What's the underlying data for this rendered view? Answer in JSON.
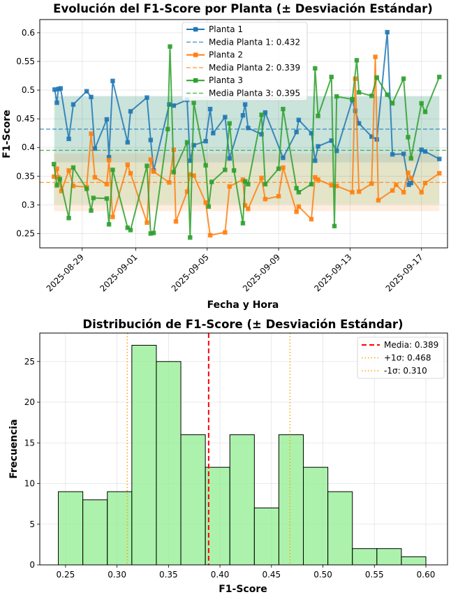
{
  "chart_data": [
    {
      "type": "line",
      "title": "Evolución del F1-Score por Planta (± Desviación Estándar)",
      "xlabel": "Fecha y Hora",
      "ylabel": "F1-Score",
      "x_range": [
        "2025-08-26T15:00",
        "2025-09-18T11:00"
      ],
      "ylim": [
        0.225,
        0.623
      ],
      "x_ticks": [
        "2025-08-29",
        "2025-09-01",
        "2025-09-05",
        "2025-09-09",
        "2025-09-13",
        "2025-09-17"
      ],
      "y_ticks": [
        0.25,
        0.3,
        0.35,
        0.4,
        0.45,
        0.5,
        0.55,
        0.6
      ],
      "grid": true,
      "legend_position": "top-center",
      "series": [
        {
          "name": "Planta 1",
          "color": "#1f77b4",
          "marker": "square",
          "mean": 0.432,
          "std": 0.058,
          "mean_label": "Media Planta 1: 0.432",
          "points": [
            [
              "2025-08-27T11:00",
              0.501
            ],
            [
              "2025-08-27T14:00",
              0.478
            ],
            [
              "2025-08-27T16:00",
              0.502
            ],
            [
              "2025-08-27T19:00",
              0.503
            ],
            [
              "2025-08-28T06:00",
              0.415
            ],
            [
              "2025-08-28T12:00",
              0.475
            ],
            [
              "2025-08-29T06:00",
              0.498
            ],
            [
              "2025-08-29T12:00",
              0.488
            ],
            [
              "2025-08-29T17:00",
              0.398
            ],
            [
              "2025-08-30T09:00",
              0.449
            ],
            [
              "2025-08-30T12:00",
              0.383
            ],
            [
              "2025-08-30T17:00",
              0.516
            ],
            [
              "2025-08-31T13:00",
              0.409
            ],
            [
              "2025-08-31T17:00",
              0.463
            ],
            [
              "2025-09-01T15:00",
              0.487
            ],
            [
              "2025-09-01T20:00",
              0.413
            ],
            [
              "2025-09-02T00:00",
              0.36
            ],
            [
              "2025-09-02T21:00",
              0.475
            ],
            [
              "2025-09-03T03:00",
              0.473
            ],
            [
              "2025-09-03T21:00",
              0.483
            ],
            [
              "2025-09-04T01:00",
              0.377
            ],
            [
              "2025-09-04T06:00",
              0.404
            ],
            [
              "2025-09-04T22:00",
              0.411
            ],
            [
              "2025-09-05T04:00",
              0.467
            ],
            [
              "2025-09-05T08:00",
              0.425
            ],
            [
              "2025-09-06T00:00",
              0.453
            ],
            [
              "2025-09-06T06:00",
              0.381
            ],
            [
              "2025-09-07T00:00",
              0.456
            ],
            [
              "2025-09-07T03:00",
              0.475
            ],
            [
              "2025-09-07T07:00",
              0.434
            ],
            [
              "2025-09-08T01:00",
              0.423
            ],
            [
              "2025-09-08T06:00",
              0.461
            ],
            [
              "2025-09-09T06:00",
              0.382
            ],
            [
              "2025-09-10T00:00",
              0.427
            ],
            [
              "2025-09-10T03:00",
              0.448
            ],
            [
              "2025-09-10T20:00",
              0.425
            ],
            [
              "2025-09-11T01:00",
              0.377
            ],
            [
              "2025-09-11T05:00",
              0.402
            ],
            [
              "2025-09-11T23:00",
              0.412
            ],
            [
              "2025-09-12T06:00",
              0.394
            ],
            [
              "2025-09-13T03:00",
              0.483
            ],
            [
              "2025-09-13T07:00",
              0.464
            ],
            [
              "2025-09-13T12:00",
              0.442
            ],
            [
              "2025-09-14T05:00",
              0.419
            ],
            [
              "2025-09-14T12:00",
              0.414
            ],
            [
              "2025-09-15T02:00",
              0.601
            ],
            [
              "2025-09-15T09:00",
              0.388
            ],
            [
              "2025-09-16T00:00",
              0.389
            ],
            [
              "2025-09-16T07:00",
              0.335
            ],
            [
              "2025-09-16T10:00",
              0.338
            ],
            [
              "2025-09-17T00:00",
              0.396
            ],
            [
              "2025-09-17T05:00",
              0.393
            ],
            [
              "2025-09-18T00:00",
              0.38
            ]
          ]
        },
        {
          "name": "Planta 2",
          "color": "#ff7f0e",
          "marker": "square",
          "mean": 0.339,
          "std": 0.05,
          "mean_label": "Media Planta 2: 0.339",
          "points": [
            [
              "2025-08-27T10:00",
              0.349
            ],
            [
              "2025-08-27T14:00",
              0.363
            ],
            [
              "2025-08-27T16:00",
              0.348
            ],
            [
              "2025-08-27T20:00",
              0.324
            ],
            [
              "2025-08-28T06:00",
              0.36
            ],
            [
              "2025-08-28T12:00",
              0.333
            ],
            [
              "2025-08-29T06:00",
              0.331
            ],
            [
              "2025-08-29T12:00",
              0.424
            ],
            [
              "2025-08-29T17:00",
              0.348
            ],
            [
              "2025-08-30T09:00",
              0.336
            ],
            [
              "2025-08-30T12:00",
              0.378
            ],
            [
              "2025-08-30T17:00",
              0.279
            ],
            [
              "2025-08-31T13:00",
              0.37
            ],
            [
              "2025-08-31T17:00",
              0.355
            ],
            [
              "2025-09-01T15:00",
              0.269
            ],
            [
              "2025-09-01T20:00",
              0.379
            ],
            [
              "2025-09-02T00:00",
              0.358
            ],
            [
              "2025-09-02T21:00",
              0.339
            ],
            [
              "2025-09-03T03:00",
              0.396
            ],
            [
              "2025-09-03T06:00",
              0.271
            ],
            [
              "2025-09-03T21:00",
              0.323
            ],
            [
              "2025-09-04T01:00",
              0.353
            ],
            [
              "2025-09-04T06:00",
              0.351
            ],
            [
              "2025-09-04T22:00",
              0.304
            ],
            [
              "2025-09-05T04:00",
              0.247
            ],
            [
              "2025-09-06T00:00",
              0.252
            ],
            [
              "2025-09-06T06:00",
              0.332
            ],
            [
              "2025-09-07T00:00",
              0.344
            ],
            [
              "2025-09-07T03:00",
              0.299
            ],
            [
              "2025-09-07T07:00",
              0.293
            ],
            [
              "2025-09-08T01:00",
              0.347
            ],
            [
              "2025-09-08T06:00",
              0.31
            ],
            [
              "2025-09-09T00:00",
              0.315
            ],
            [
              "2025-09-09T06:00",
              0.365
            ],
            [
              "2025-09-10T00:00",
              0.288
            ],
            [
              "2025-09-10T03:00",
              0.297
            ],
            [
              "2025-09-10T20:00",
              0.275
            ],
            [
              "2025-09-11T01:00",
              0.348
            ],
            [
              "2025-09-11T05:00",
              0.344
            ],
            [
              "2025-09-11T23:00",
              0.334
            ],
            [
              "2025-09-12T06:00",
              0.333
            ],
            [
              "2025-09-13T03:00",
              0.322
            ],
            [
              "2025-09-13T07:00",
              0.52
            ],
            [
              "2025-09-13T12:00",
              0.323
            ],
            [
              "2025-09-14T05:00",
              0.337
            ],
            [
              "2025-09-14T10:00",
              0.558
            ],
            [
              "2025-09-14T14:00",
              0.308
            ],
            [
              "2025-09-15T09:00",
              0.325
            ],
            [
              "2025-09-15T14:00",
              0.335
            ],
            [
              "2025-09-16T00:00",
              0.322
            ],
            [
              "2025-09-16T06:00",
              0.356
            ],
            [
              "2025-09-16T10:00",
              0.347
            ],
            [
              "2025-09-17T00:00",
              0.322
            ],
            [
              "2025-09-17T05:00",
              0.338
            ],
            [
              "2025-09-18T00:00",
              0.355
            ]
          ]
        },
        {
          "name": "Planta 3",
          "color": "#2ca02c",
          "marker": "square",
          "mean": 0.395,
          "std": 0.094,
          "mean_label": "Media Planta 3: 0.395",
          "points": [
            [
              "2025-08-27T10:00",
              0.371
            ],
            [
              "2025-08-27T14:00",
              0.334
            ],
            [
              "2025-08-27T18:00",
              0.345
            ],
            [
              "2025-08-28T06:00",
              0.277
            ],
            [
              "2025-08-28T12:00",
              0.365
            ],
            [
              "2025-08-29T06:00",
              0.328
            ],
            [
              "2025-08-29T12:00",
              0.29
            ],
            [
              "2025-08-29T15:00",
              0.312
            ],
            [
              "2025-08-30T09:00",
              0.311
            ],
            [
              "2025-08-30T12:00",
              0.266
            ],
            [
              "2025-08-30T17:00",
              0.361
            ],
            [
              "2025-08-31T13:00",
              0.26
            ],
            [
              "2025-08-31T17:00",
              0.256
            ],
            [
              "2025-09-01T15:00",
              0.368
            ],
            [
              "2025-09-01T20:00",
              0.25
            ],
            [
              "2025-09-02T00:00",
              0.251
            ],
            [
              "2025-09-02T19:00",
              0.432
            ],
            [
              "2025-09-02T22:00",
              0.576
            ],
            [
              "2025-09-03T03:00",
              0.357
            ],
            [
              "2025-09-03T21:00",
              0.409
            ],
            [
              "2025-09-04T01:00",
              0.243
            ],
            [
              "2025-09-04T06:00",
              0.478
            ],
            [
              "2025-09-04T22:00",
              0.369
            ],
            [
              "2025-09-05T02:00",
              0.297
            ],
            [
              "2025-09-05T06:00",
              0.34
            ],
            [
              "2025-09-06T00:00",
              0.361
            ],
            [
              "2025-09-06T06:00",
              0.442
            ],
            [
              "2025-09-06T12:00",
              0.36
            ],
            [
              "2025-09-07T00:00",
              0.268
            ],
            [
              "2025-09-07T03:00",
              0.341
            ],
            [
              "2025-09-07T07:00",
              0.336
            ],
            [
              "2025-09-08T01:00",
              0.457
            ],
            [
              "2025-09-08T06:00",
              0.336
            ],
            [
              "2025-09-09T00:00",
              0.363
            ],
            [
              "2025-09-09T06:00",
              0.467
            ],
            [
              "2025-09-10T00:00",
              0.329
            ],
            [
              "2025-09-10T03:00",
              0.322
            ],
            [
              "2025-09-10T20:00",
              0.336
            ],
            [
              "2025-09-11T01:00",
              0.538
            ],
            [
              "2025-09-11T05:00",
              0.455
            ],
            [
              "2025-09-11T23:00",
              0.523
            ],
            [
              "2025-09-12T03:00",
              0.263
            ],
            [
              "2025-09-12T06:00",
              0.489
            ],
            [
              "2025-09-13T03:00",
              0.484
            ],
            [
              "2025-09-13T09:00",
              0.552
            ],
            [
              "2025-09-13T12:00",
              0.496
            ],
            [
              "2025-09-14T05:00",
              0.49
            ],
            [
              "2025-09-14T12:00",
              0.522
            ],
            [
              "2025-09-15T02:00",
              0.492
            ],
            [
              "2025-09-15T09:00",
              0.477
            ],
            [
              "2025-09-16T00:00",
              0.52
            ],
            [
              "2025-09-16T06:00",
              0.418
            ],
            [
              "2025-09-16T10:00",
              0.381
            ],
            [
              "2025-09-17T00:00",
              0.477
            ],
            [
              "2025-09-17T05:00",
              0.462
            ],
            [
              "2025-09-18T00:00",
              0.523
            ]
          ]
        }
      ]
    },
    {
      "type": "bar",
      "title": "Distribución de F1-Score (± Desviación Estándar)",
      "xlabel": "F1-Score",
      "ylabel": "Frecuencia",
      "xlim": [
        0.225,
        0.621
      ],
      "ylim": [
        0,
        28.5
      ],
      "x_ticks": [
        0.25,
        0.3,
        0.35,
        0.4,
        0.45,
        0.5,
        0.55,
        0.6
      ],
      "y_ticks": [
        0,
        5,
        10,
        15,
        20,
        25
      ],
      "grid": true,
      "legend_position": "top-right",
      "bar_color": "#90ee90",
      "bins": [
        [
          0.243,
          0.2668,
          9
        ],
        [
          0.2668,
          0.2906,
          8
        ],
        [
          0.2906,
          0.3144,
          9
        ],
        [
          0.3144,
          0.3382,
          27
        ],
        [
          0.3382,
          0.362,
          25
        ],
        [
          0.362,
          0.3858,
          16
        ],
        [
          0.3858,
          0.4096,
          12
        ],
        [
          0.4096,
          0.4334,
          16
        ],
        [
          0.4334,
          0.4572,
          7
        ],
        [
          0.4572,
          0.481,
          16
        ],
        [
          0.481,
          0.5048,
          12
        ],
        [
          0.5048,
          0.5286,
          9
        ],
        [
          0.5286,
          0.5524,
          2
        ],
        [
          0.5524,
          0.5762,
          2
        ],
        [
          0.5762,
          0.6,
          1
        ]
      ],
      "lines": [
        {
          "value": 0.389,
          "label": "Media: 0.389",
          "color": "#ff0000",
          "style": "dashed"
        },
        {
          "value": 0.468,
          "label": "+1σ: 0.468",
          "color": "#ffa500",
          "style": "dotted"
        },
        {
          "value": 0.31,
          "label": "-1σ: 0.310",
          "color": "#ffa500",
          "style": "dotted"
        }
      ]
    }
  ]
}
